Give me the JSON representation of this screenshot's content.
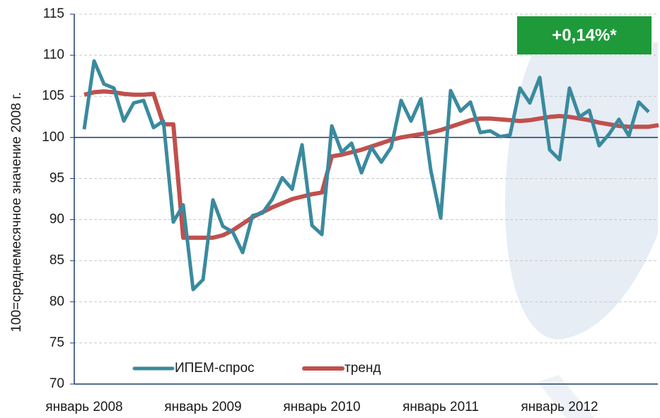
{
  "chart_data": {
    "type": "line",
    "y_label": "100=среднемесячное значение 2008 г.",
    "annotation": "+0,14%*",
    "categories": [
      "январь 2008",
      null,
      null,
      null,
      null,
      null,
      null,
      null,
      null,
      null,
      null,
      null,
      "январь 2009",
      null,
      null,
      null,
      null,
      null,
      null,
      null,
      null,
      null,
      null,
      null,
      "январь 2010",
      null,
      null,
      null,
      null,
      null,
      null,
      null,
      null,
      null,
      null,
      null,
      "январь 2011",
      null,
      null,
      null,
      null,
      null,
      null,
      null,
      null,
      null,
      null,
      null,
      "январь 2012",
      null,
      null,
      null,
      null,
      null,
      null,
      null,
      null,
      null,
      null
    ],
    "series": [
      {
        "name": "ИПЕМ-спрос",
        "color": "#3a8a9e",
        "values": [
          101,
          109.3,
          106.5,
          106,
          102,
          104.2,
          104.5,
          101.2,
          102,
          89.7,
          91.8,
          81.5,
          82.7,
          92.4,
          89.2,
          88.5,
          86,
          90.5,
          90.8,
          92.5,
          95.1,
          93.7,
          99.1,
          89.3,
          88.2,
          101.4,
          98.2,
          99.3,
          95.7,
          98.8,
          97,
          98.8,
          104.5,
          102,
          104.7,
          96,
          90.2,
          105.7,
          103.2,
          104.3,
          100.6,
          100.8,
          100.1,
          100.3,
          106,
          104.2,
          107.3,
          98.5,
          97.3,
          106,
          102.5,
          103.3,
          99,
          100.4,
          102.2,
          100.2,
          104.3,
          103.1,
          null
        ]
      },
      {
        "name": "тренд",
        "color": "#c0504d",
        "values": [
          105.2,
          105.5,
          105.6,
          105.5,
          105.3,
          105.2,
          105.2,
          105.3,
          101.6,
          101.6,
          87.8,
          87.8,
          87.8,
          87.8,
          88.1,
          88.7,
          89.5,
          90.3,
          90.9,
          91.5,
          92,
          92.5,
          92.8,
          93.1,
          93.3,
          97.7,
          97.9,
          98.2,
          98.5,
          98.9,
          99.3,
          99.7,
          100,
          100.2,
          100.4,
          100.6,
          100.9,
          101.3,
          101.7,
          102.1,
          102.3,
          102.3,
          102.2,
          102.1,
          102,
          102.1,
          102.3,
          102.5,
          102.6,
          102.5,
          102.3,
          102.1,
          101.8,
          101.6,
          101.4,
          101.3,
          101.3,
          101.3,
          101.5
        ]
      }
    ],
    "ylim": [
      70,
      115
    ],
    "yticks": [
      70,
      75,
      80,
      85,
      90,
      95,
      100,
      105,
      110,
      115
    ],
    "reference_line": 100,
    "grid": true
  }
}
